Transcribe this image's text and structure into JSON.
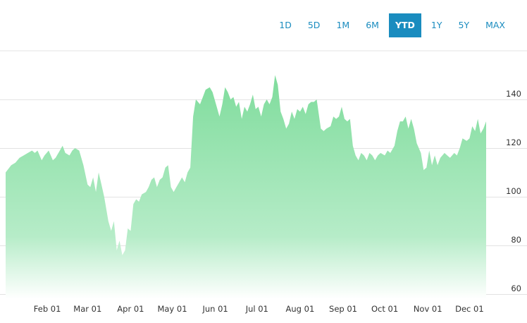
{
  "range_selector": {
    "buttons": [
      {
        "label": "1D",
        "active": false
      },
      {
        "label": "5D",
        "active": false
      },
      {
        "label": "1M",
        "active": false
      },
      {
        "label": "6M",
        "active": false
      },
      {
        "label": "YTD",
        "active": true
      },
      {
        "label": "1Y",
        "active": false
      },
      {
        "label": "5Y",
        "active": false
      },
      {
        "label": "MAX",
        "active": false
      }
    ]
  },
  "colors": {
    "accent": "#1a8cbf",
    "area_top": "#7fdc9c",
    "area_bottom": "#ffffff",
    "gridline": "#e3e3e3"
  },
  "chart_data": {
    "type": "area",
    "title": "",
    "xlabel": "",
    "ylabel": "",
    "ylim": [
      58,
      160
    ],
    "y_ticks": [
      60,
      80,
      100,
      120,
      140
    ],
    "y_axis_position": "right",
    "grid": true,
    "x_ticks": [
      {
        "label": "Feb 01",
        "date": "2020-02-01"
      },
      {
        "label": "Mar 01",
        "date": "2020-03-01"
      },
      {
        "label": "Apr 01",
        "date": "2020-04-01"
      },
      {
        "label": "May 01",
        "date": "2020-05-01"
      },
      {
        "label": "Jun 01",
        "date": "2020-06-01"
      },
      {
        "label": "Jul 01",
        "date": "2020-07-01"
      },
      {
        "label": "Aug 01",
        "date": "2020-08-01"
      },
      {
        "label": "Sep 01",
        "date": "2020-09-01"
      },
      {
        "label": "Oct 01",
        "date": "2020-10-01"
      },
      {
        "label": "Nov 01",
        "date": "2020-11-01"
      },
      {
        "label": "Dec 01",
        "date": "2020-12-01"
      }
    ],
    "series": [
      {
        "points": [
          [
            "2020-01-02",
            110
          ],
          [
            "2020-01-06",
            113
          ],
          [
            "2020-01-09",
            114
          ],
          [
            "2020-01-12",
            116
          ],
          [
            "2020-01-15",
            117
          ],
          [
            "2020-01-18",
            118
          ],
          [
            "2020-01-21",
            119
          ],
          [
            "2020-01-23",
            118
          ],
          [
            "2020-01-25",
            119
          ],
          [
            "2020-01-28",
            115
          ],
          [
            "2020-01-30",
            117
          ],
          [
            "2020-02-02",
            119
          ],
          [
            "2020-02-05",
            115
          ],
          [
            "2020-02-07",
            116
          ],
          [
            "2020-02-10",
            119
          ],
          [
            "2020-02-12",
            121
          ],
          [
            "2020-02-14",
            118
          ],
          [
            "2020-02-17",
            117
          ],
          [
            "2020-02-19",
            119
          ],
          [
            "2020-02-21",
            120
          ],
          [
            "2020-02-24",
            119
          ],
          [
            "2020-02-27",
            113
          ],
          [
            "2020-03-01",
            105
          ],
          [
            "2020-03-03",
            104
          ],
          [
            "2020-03-05",
            108
          ],
          [
            "2020-03-07",
            102
          ],
          [
            "2020-03-09",
            110
          ],
          [
            "2020-03-11",
            105
          ],
          [
            "2020-03-13",
            100
          ],
          [
            "2020-03-16",
            90
          ],
          [
            "2020-03-18",
            86
          ],
          [
            "2020-03-20",
            90
          ],
          [
            "2020-03-22",
            78
          ],
          [
            "2020-03-24",
            82
          ],
          [
            "2020-03-26",
            76
          ],
          [
            "2020-03-28",
            78
          ],
          [
            "2020-03-30",
            87
          ],
          [
            "2020-04-01",
            86
          ],
          [
            "2020-04-03",
            97
          ],
          [
            "2020-04-05",
            99
          ],
          [
            "2020-04-07",
            98
          ],
          [
            "2020-04-09",
            101
          ],
          [
            "2020-04-12",
            102
          ],
          [
            "2020-04-14",
            104
          ],
          [
            "2020-04-16",
            107
          ],
          [
            "2020-04-18",
            108
          ],
          [
            "2020-04-20",
            104
          ],
          [
            "2020-04-22",
            107
          ],
          [
            "2020-04-24",
            108
          ],
          [
            "2020-04-26",
            112
          ],
          [
            "2020-04-28",
            113
          ],
          [
            "2020-04-30",
            104
          ],
          [
            "2020-05-02",
            102
          ],
          [
            "2020-05-04",
            104
          ],
          [
            "2020-05-06",
            106
          ],
          [
            "2020-05-08",
            108
          ],
          [
            "2020-05-10",
            106
          ],
          [
            "2020-05-12",
            110
          ],
          [
            "2020-05-14",
            112
          ],
          [
            "2020-05-16",
            133
          ],
          [
            "2020-05-18",
            140
          ],
          [
            "2020-05-21",
            138
          ],
          [
            "2020-05-23",
            141
          ],
          [
            "2020-05-25",
            144
          ],
          [
            "2020-05-28",
            145
          ],
          [
            "2020-05-30",
            143
          ],
          [
            "2020-06-02",
            137
          ],
          [
            "2020-06-04",
            133
          ],
          [
            "2020-06-06",
            138
          ],
          [
            "2020-06-08",
            145
          ],
          [
            "2020-06-10",
            143
          ],
          [
            "2020-06-12",
            140
          ],
          [
            "2020-06-14",
            141
          ],
          [
            "2020-06-16",
            137
          ],
          [
            "2020-06-18",
            139
          ],
          [
            "2020-06-20",
            132
          ],
          [
            "2020-06-22",
            137
          ],
          [
            "2020-06-24",
            135
          ],
          [
            "2020-06-26",
            138
          ],
          [
            "2020-06-28",
            142
          ],
          [
            "2020-06-30",
            136
          ],
          [
            "2020-07-02",
            137
          ],
          [
            "2020-07-04",
            133
          ],
          [
            "2020-07-06",
            138
          ],
          [
            "2020-07-08",
            140
          ],
          [
            "2020-07-10",
            138
          ],
          [
            "2020-07-12",
            141
          ],
          [
            "2020-07-14",
            150
          ],
          [
            "2020-07-16",
            146
          ],
          [
            "2020-07-18",
            135
          ],
          [
            "2020-07-20",
            132
          ],
          [
            "2020-07-22",
            128
          ],
          [
            "2020-07-24",
            130
          ],
          [
            "2020-07-26",
            135
          ],
          [
            "2020-07-28",
            132
          ],
          [
            "2020-07-30",
            136
          ],
          [
            "2020-08-01",
            135
          ],
          [
            "2020-08-03",
            137
          ],
          [
            "2020-08-05",
            134
          ],
          [
            "2020-08-07",
            138
          ],
          [
            "2020-08-09",
            139
          ],
          [
            "2020-08-11",
            139
          ],
          [
            "2020-08-13",
            140
          ],
          [
            "2020-08-16",
            128
          ],
          [
            "2020-08-18",
            127
          ],
          [
            "2020-08-20",
            128
          ],
          [
            "2020-08-23",
            129
          ],
          [
            "2020-08-25",
            133
          ],
          [
            "2020-08-27",
            132
          ],
          [
            "2020-08-29",
            133
          ],
          [
            "2020-08-31",
            137
          ],
          [
            "2020-09-02",
            132
          ],
          [
            "2020-09-04",
            131
          ],
          [
            "2020-09-06",
            132
          ],
          [
            "2020-09-08",
            121
          ],
          [
            "2020-09-10",
            117
          ],
          [
            "2020-09-12",
            115
          ],
          [
            "2020-09-14",
            118
          ],
          [
            "2020-09-16",
            117
          ],
          [
            "2020-09-18",
            115
          ],
          [
            "2020-09-20",
            118
          ],
          [
            "2020-09-22",
            117
          ],
          [
            "2020-09-24",
            115
          ],
          [
            "2020-09-26",
            117
          ],
          [
            "2020-09-28",
            118
          ],
          [
            "2020-10-01",
            117
          ],
          [
            "2020-10-03",
            119
          ],
          [
            "2020-10-05",
            118
          ],
          [
            "2020-10-08",
            121
          ],
          [
            "2020-10-10",
            127
          ],
          [
            "2020-10-12",
            131
          ],
          [
            "2020-10-14",
            131
          ],
          [
            "2020-10-16",
            133
          ],
          [
            "2020-10-18",
            128
          ],
          [
            "2020-10-20",
            132
          ],
          [
            "2020-10-22",
            128
          ],
          [
            "2020-10-24",
            122
          ],
          [
            "2020-10-27",
            118
          ],
          [
            "2020-10-29",
            111
          ],
          [
            "2020-10-31",
            112
          ],
          [
            "2020-11-02",
            119
          ],
          [
            "2020-11-04",
            113
          ],
          [
            "2020-11-06",
            117
          ],
          [
            "2020-11-08",
            113
          ],
          [
            "2020-11-10",
            116
          ],
          [
            "2020-11-13",
            118
          ],
          [
            "2020-11-15",
            117
          ],
          [
            "2020-11-17",
            116
          ],
          [
            "2020-11-20",
            118
          ],
          [
            "2020-11-22",
            117
          ],
          [
            "2020-11-24",
            120
          ],
          [
            "2020-11-26",
            124
          ],
          [
            "2020-11-29",
            123
          ],
          [
            "2020-12-01",
            124
          ],
          [
            "2020-12-03",
            129
          ],
          [
            "2020-12-05",
            127
          ],
          [
            "2020-12-07",
            132
          ],
          [
            "2020-12-09",
            126
          ],
          [
            "2020-12-11",
            128
          ],
          [
            "2020-12-13",
            131
          ]
        ]
      }
    ]
  }
}
